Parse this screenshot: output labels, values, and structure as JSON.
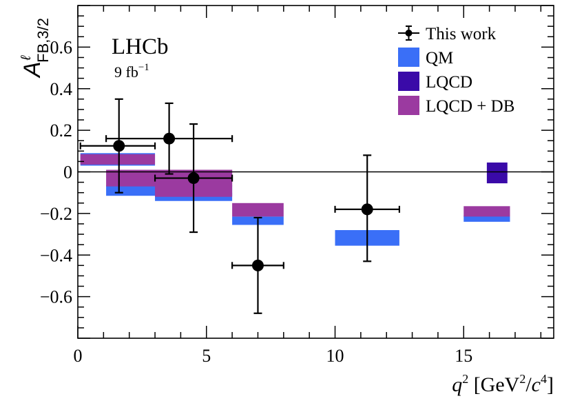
{
  "chart_data": {
    "type": "scatter",
    "experiment_label": "LHCb",
    "luminosity_label": "9 fb",
    "luminosity_exponent": "−1",
    "ylabel": {
      "main": "A",
      "superscript": "ℓ",
      "subscript": "FB,3/2"
    },
    "xlabel": {
      "var": "q",
      "var_exp": "2",
      "unit_open": " [GeV",
      "unit_exp1": "2",
      "unit_slash": "/",
      "unit_c": "c",
      "unit_exp2": "4",
      "unit_close": "]"
    },
    "xlim": [
      0,
      18.5
    ],
    "ylim": [
      -0.8,
      0.8
    ],
    "x_ticks": [
      {
        "value": 0,
        "label": "0"
      },
      {
        "value": 5,
        "label": "5"
      },
      {
        "value": 10,
        "label": "10"
      },
      {
        "value": 15,
        "label": "15"
      }
    ],
    "y_ticks": [
      {
        "value": -0.6,
        "label": "−0.6"
      },
      {
        "value": -0.4,
        "label": "−0.4"
      },
      {
        "value": -0.2,
        "label": "−0.2"
      },
      {
        "value": 0,
        "label": "0"
      },
      {
        "value": 0.2,
        "label": "0.2"
      },
      {
        "value": 0.4,
        "label": "0.4"
      },
      {
        "value": 0.6,
        "label": "0.6"
      }
    ],
    "legend": {
      "placement": "top-right",
      "entries": [
        {
          "key": "data",
          "label": "This work"
        },
        {
          "key": "qm",
          "label": "QM"
        },
        {
          "key": "lqcd",
          "label": "LQCD"
        },
        {
          "key": "lqcddb",
          "label": "LQCD + DB"
        }
      ]
    },
    "colors": {
      "qm": "#3a6ff7",
      "lqcd": "#3a0aa8",
      "lqcddb": "#9b3aa0",
      "data": "#000000"
    },
    "data_points": [
      {
        "x": 1.6,
        "xlo": 0.1,
        "xhi": 3.0,
        "y": 0.125,
        "ylo": -0.1,
        "yhi": 0.35
      },
      {
        "x": 3.55,
        "xlo": 1.1,
        "xhi": 6.0,
        "y": 0.16,
        "ylo": -0.01,
        "yhi": 0.33
      },
      {
        "x": 4.5,
        "xlo": 3.0,
        "xhi": 6.0,
        "y": -0.03,
        "ylo": -0.29,
        "yhi": 0.23
      },
      {
        "x": 7.0,
        "xlo": 6.0,
        "xhi": 8.0,
        "y": -0.45,
        "ylo": -0.68,
        "yhi": -0.22
      },
      {
        "x": 11.25,
        "xlo": 10.0,
        "xhi": 12.5,
        "y": -0.18,
        "ylo": -0.43,
        "yhi": 0.08
      }
    ],
    "qm_bands": [
      {
        "xlo": 0.1,
        "xhi": 3.0,
        "ylo": 0.03,
        "yhi": 0.09
      },
      {
        "xlo": 1.1,
        "xhi": 6.0,
        "ylo": -0.115,
        "yhi": -0.065
      },
      {
        "xlo": 3.0,
        "xhi": 6.0,
        "ylo": -0.14,
        "yhi": -0.1
      },
      {
        "xlo": 6.0,
        "xhi": 8.0,
        "ylo": -0.255,
        "yhi": -0.215
      },
      {
        "xlo": 10.0,
        "xhi": 12.5,
        "ylo": -0.355,
        "yhi": -0.28
      },
      {
        "xlo": 15.0,
        "xhi": 16.8,
        "ylo": -0.24,
        "yhi": -0.21
      }
    ],
    "lqcddb_bands": [
      {
        "xlo": 0.1,
        "xhi": 3.0,
        "ylo": 0.035,
        "yhi": 0.085
      },
      {
        "xlo": 1.1,
        "xhi": 6.0,
        "ylo": -0.07,
        "yhi": 0.01
      },
      {
        "xlo": 3.0,
        "xhi": 6.0,
        "ylo": -0.12,
        "yhi": 0.01
      },
      {
        "xlo": 6.0,
        "xhi": 8.0,
        "ylo": -0.215,
        "yhi": -0.15
      },
      {
        "xlo": 15.0,
        "xhi": 16.8,
        "ylo": -0.215,
        "yhi": -0.165
      }
    ],
    "lqcd_bands": [
      {
        "xlo": 15.9,
        "xhi": 16.7,
        "ylo": -0.055,
        "yhi": 0.045
      }
    ]
  }
}
